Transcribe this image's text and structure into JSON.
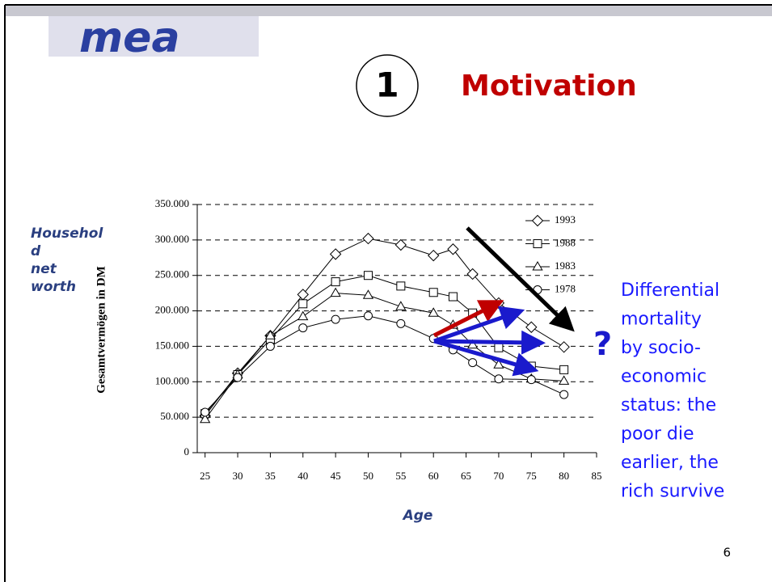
{
  "logo": "mea",
  "section_number": "1",
  "heading": "Motivation",
  "side_label_lines": [
    "Househol",
    "d",
    "net",
    "worth"
  ],
  "question_mark": "?",
  "side_text_lines": [
    "Differential",
    "mortality",
    "by socio-",
    "economic",
    "status: the",
    "poor die",
    "earlier, the",
    "rich survive"
  ],
  "page_number": "6",
  "chart_data": {
    "type": "line",
    "y_label": "Gesamtvermögen in DM",
    "x_label": "Age",
    "x": [
      25,
      30,
      35,
      40,
      45,
      50,
      55,
      60,
      63,
      66,
      70,
      75,
      80
    ],
    "series": [
      {
        "name": "1993",
        "color": "#000000",
        "marker": "diamond",
        "values": [
          52000,
          112000,
          165000,
          223000,
          280000,
          302000,
          293000,
          278000,
          287000,
          252000,
          211000,
          177000,
          149000
        ]
      },
      {
        "name": "1988",
        "color": "#000000",
        "marker": "square",
        "values": [
          55000,
          110000,
          160000,
          210000,
          241000,
          250000,
          235000,
          226000,
          220000,
          197000,
          148000,
          122000,
          117000
        ]
      },
      {
        "name": "1983",
        "color": "#000000",
        "marker": "triangle",
        "values": [
          47000,
          110000,
          165000,
          192000,
          225000,
          222000,
          206000,
          197000,
          180000,
          152000,
          124000,
          104000,
          101000
        ]
      },
      {
        "name": "1978",
        "color": "#000000",
        "marker": "circle",
        "values": [
          57000,
          106000,
          150000,
          176000,
          188000,
          193000,
          182000,
          161000,
          145000,
          127000,
          104000,
          103000,
          82000
        ]
      }
    ],
    "xlim": [
      23.8,
      85
    ],
    "xticks": [
      25,
      30,
      35,
      40,
      45,
      50,
      55,
      60,
      65,
      70,
      75,
      80,
      85
    ],
    "ylim": [
      0,
      350000
    ],
    "yticks": [
      0,
      {
        "value": 50000,
        "label": "50.000"
      },
      {
        "value": 100000,
        "label": "100.000"
      },
      {
        "value": 150000,
        "label": "150.000"
      },
      {
        "value": 200000,
        "label": "200.000"
      },
      {
        "value": 250000,
        "label": "250.000"
      },
      {
        "value": 300000,
        "label": "300.000"
      },
      {
        "value": 350000,
        "label": "350.000"
      }
    ],
    "grid": true,
    "legend": "upper right"
  }
}
